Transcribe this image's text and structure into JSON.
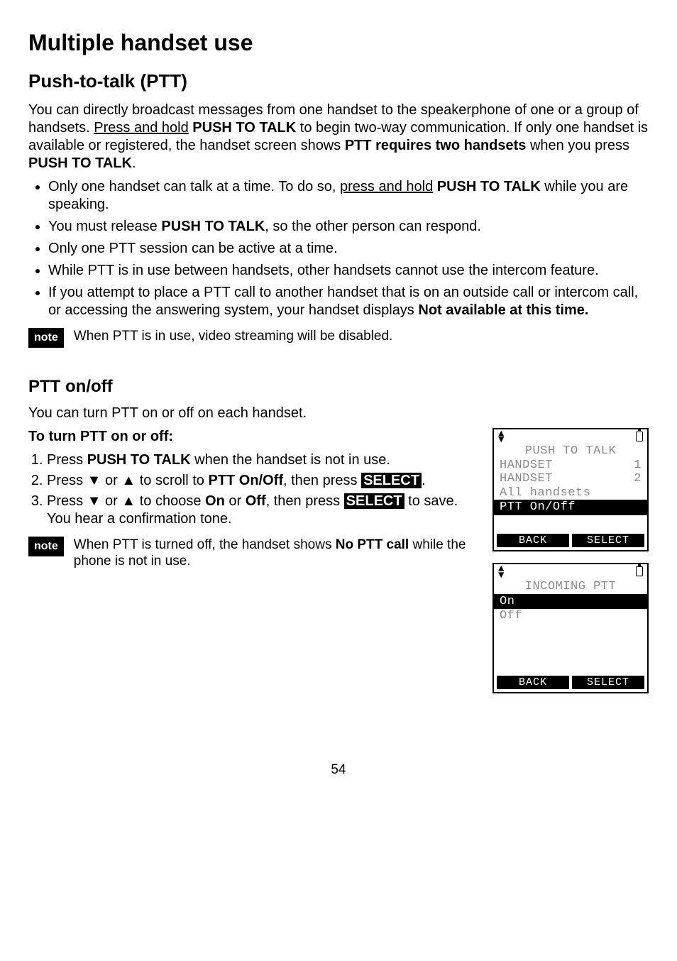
{
  "page": {
    "title": "Multiple handset use",
    "section1": {
      "heading": "Push-to-talk (PTT)",
      "intro_pre": "You can directly broadcast messages from one handset to the speakerphone of one or a group of handsets. ",
      "intro_underlined": "Press and hold",
      "intro_mid1": " ",
      "intro_bold1": "PUSH TO TALK",
      "intro_mid2": " to begin two-way communication. If only one handset is available or registered, the handset screen shows ",
      "intro_bold2": "PTT requires two handsets",
      "intro_mid3": " when you press ",
      "intro_bold3": "PUSH TO TALK",
      "intro_end": ".",
      "bullets": {
        "b1_pre": "Only one handset can talk at a time. To do so, ",
        "b1_ul": "press and hold",
        "b1_sp": " ",
        "b1_bold": "PUSH TO TALK",
        "b1_post": " while you are speaking.",
        "b2_pre": "You must release ",
        "b2_bold": "PUSH TO TALK",
        "b2_post": ", so the other person can respond.",
        "b3": "Only one PTT session can be active at a time.",
        "b4": "While PTT is in use between handsets, other handsets cannot use the intercom feature.",
        "b5_pre": "If you attempt to place a PTT call to another handset that is on an outside call or intercom call, or accessing the answering system, your handset displays ",
        "b5_bold": "Not available at this time."
      },
      "note_label": "note",
      "note_text": "When PTT is in use, video streaming will be disabled."
    },
    "section2": {
      "heading": "PTT on/off",
      "intro": "You can turn PTT on or off on each handset.",
      "sub": "To turn PTT on or off:",
      "steps": {
        "s1_pre": "Press ",
        "s1_bold": "PUSH TO TALK",
        "s1_post": " when the handset is not in use.",
        "s2_pre": "Press ",
        "s2_ar1": "▼",
        "s2_or": " or ",
        "s2_ar2": "▲",
        "s2_mid": " to scroll to ",
        "s2_bold": "PTT On/Off",
        "s2_then": ", then press ",
        "s2_select": "SELECT",
        "s2_end": ".",
        "s3_pre": "Press ",
        "s3_ar1": "▼",
        "s3_or": " or ",
        "s3_ar2": "▲",
        "s3_mid": " to choose ",
        "s3_on": "On",
        "s3_or2": " or ",
        "s3_off": "Off",
        "s3_then": ", then press ",
        "s3_select": "SELECT",
        "s3_post": " to save. You hear a confirmation tone."
      },
      "note_label": "note",
      "note_pre": "When PTT is turned off, the handset shows ",
      "note_bold": "No PTT call",
      "note_post": " while the phone is not in use."
    },
    "lcd1": {
      "title": "PUSH TO TALK",
      "r1l": "HANDSET",
      "r1r": "1",
      "r2l": "HANDSET",
      "r2r": "2",
      "r3": "All handsets",
      "hilite": "PTT On/Off",
      "back": "BACK",
      "select": "SELECT"
    },
    "lcd2": {
      "title": "INCOMING PTT",
      "hilite": "On",
      "r1": "Off",
      "back": "BACK",
      "select": "SELECT"
    },
    "page_number": "54"
  }
}
